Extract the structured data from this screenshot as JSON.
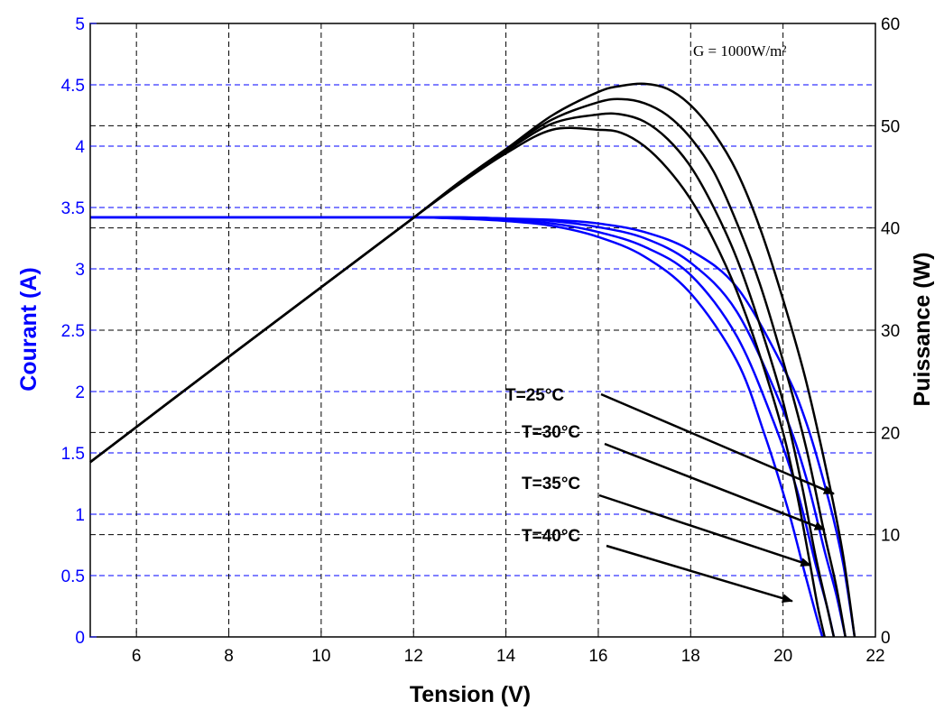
{
  "chart_data": {
    "type": "line",
    "title": "",
    "xlabel": "Tension (V)",
    "ylabel_left": "Courant (A)",
    "ylabel_right": "Puissance (W)",
    "xlim": [
      5,
      22
    ],
    "ylim_left": [
      0,
      5
    ],
    "ylim_right": [
      0,
      60
    ],
    "xticks": [
      "6",
      "8",
      "10",
      "12",
      "14",
      "16",
      "18",
      "20",
      "22"
    ],
    "yticks_left": [
      "0",
      "0.5",
      "1",
      "1.5",
      "2",
      "2.5",
      "3",
      "3.5",
      "4",
      "4.5",
      "5"
    ],
    "yticks_right": [
      "0",
      "10",
      "20",
      "30",
      "40",
      "50",
      "60"
    ],
    "grid": true,
    "irradiance_label": "G = 1000W/m²",
    "annotations": [
      {
        "text": "T=25°C",
        "points_to": [
          21.1,
          14
        ]
      },
      {
        "text": "T=30°C",
        "points_to": [
          20.9,
          10.5
        ]
      },
      {
        "text": "T=35°C",
        "points_to": [
          20.6,
          7
        ]
      },
      {
        "text": "T=40°C",
        "points_to": [
          20.2,
          3.5
        ]
      }
    ],
    "colors": {
      "current": "#0000ff",
      "power": "#000000",
      "grid_left": "#0000ff",
      "grid_right": "#000000"
    },
    "series": [
      {
        "name": "T=25°C",
        "axis": "left",
        "quantity": "current",
        "x": [
          5,
          8,
          10,
          12,
          13,
          14,
          15,
          16,
          17,
          18,
          19,
          20,
          20.5,
          21,
          21.3,
          21.55
        ],
        "y": [
          3.42,
          3.42,
          3.42,
          3.42,
          3.42,
          3.41,
          3.4,
          3.37,
          3.3,
          3.15,
          2.85,
          2.2,
          1.75,
          1.1,
          0.6,
          0
        ]
      },
      {
        "name": "T=30°C",
        "axis": "left",
        "quantity": "current",
        "x": [
          5,
          8,
          10,
          12,
          13,
          14,
          15,
          16,
          17,
          18,
          19,
          20,
          20.5,
          20.9,
          21.15,
          21.35
        ],
        "y": [
          3.42,
          3.42,
          3.42,
          3.42,
          3.42,
          3.41,
          3.39,
          3.34,
          3.25,
          3.05,
          2.65,
          1.85,
          1.3,
          0.7,
          0.35,
          0
        ]
      },
      {
        "name": "T=35°C",
        "axis": "left",
        "quantity": "current",
        "x": [
          5,
          8,
          10,
          12,
          13,
          14,
          15,
          16,
          17,
          18,
          19,
          19.8,
          20.3,
          20.7,
          20.95,
          21.1
        ],
        "y": [
          3.42,
          3.42,
          3.42,
          3.42,
          3.41,
          3.4,
          3.37,
          3.3,
          3.18,
          2.95,
          2.45,
          1.75,
          1.2,
          0.6,
          0.25,
          0
        ]
      },
      {
        "name": "T=40°C",
        "axis": "left",
        "quantity": "current",
        "x": [
          5,
          8,
          10,
          12,
          13,
          14,
          15,
          16,
          17,
          18,
          19,
          19.6,
          20.1,
          20.45,
          20.7,
          20.85
        ],
        "y": [
          3.42,
          3.42,
          3.42,
          3.42,
          3.41,
          3.39,
          3.35,
          3.26,
          3.1,
          2.8,
          2.25,
          1.65,
          1.05,
          0.55,
          0.2,
          0
        ]
      },
      {
        "name": "T=25°C",
        "axis": "right",
        "quantity": "power",
        "x": [
          5,
          8,
          10,
          12,
          13,
          14,
          15,
          16,
          16.5,
          17,
          17.5,
          18,
          18.5,
          19,
          19.5,
          20,
          20.5,
          21,
          21.3,
          21.55
        ],
        "y": [
          17.1,
          27.4,
          34.2,
          41.0,
          44.5,
          47.7,
          51.0,
          53.3,
          53.9,
          54.1,
          53.6,
          52.0,
          49.3,
          45.5,
          40.0,
          33.0,
          25.0,
          15.0,
          8.0,
          0
        ]
      },
      {
        "name": "T=30°C",
        "axis": "right",
        "quantity": "power",
        "x": [
          5,
          8,
          10,
          12,
          13,
          14,
          15,
          16,
          16.5,
          17,
          17.5,
          18,
          18.5,
          19,
          19.5,
          20,
          20.5,
          20.9,
          21.15,
          21.35
        ],
        "y": [
          17.1,
          27.4,
          34.2,
          41.0,
          44.5,
          47.7,
          50.6,
          52.3,
          52.6,
          52.2,
          51.0,
          48.8,
          45.5,
          40.5,
          34.5,
          27.0,
          18.5,
          10.0,
          5.0,
          0
        ]
      },
      {
        "name": "T=35°C",
        "axis": "right",
        "quantity": "power",
        "x": [
          5,
          8,
          10,
          12,
          13,
          14,
          15,
          16,
          16.5,
          17,
          17.5,
          18,
          18.5,
          19,
          19.5,
          20,
          20.4,
          20.7,
          20.95,
          21.1
        ],
        "y": [
          17.1,
          27.4,
          34.2,
          41.0,
          44.4,
          47.5,
          50.2,
          51.1,
          51.1,
          50.4,
          48.7,
          46.0,
          42.0,
          37.0,
          30.5,
          23.0,
          15.0,
          8.0,
          3.0,
          0
        ]
      },
      {
        "name": "T=40°C",
        "axis": "right",
        "quantity": "power",
        "x": [
          5,
          8,
          10,
          12,
          13,
          14,
          15,
          16,
          16.5,
          17,
          17.5,
          18,
          18.5,
          19,
          19.5,
          20,
          20.3,
          20.55,
          20.75,
          20.9
        ],
        "y": [
          17.1,
          27.4,
          34.2,
          41.0,
          44.3,
          47.3,
          49.6,
          49.6,
          49.3,
          48.0,
          45.8,
          42.8,
          38.8,
          33.8,
          27.5,
          20.0,
          14.0,
          8.0,
          3.0,
          0
        ]
      }
    ]
  }
}
